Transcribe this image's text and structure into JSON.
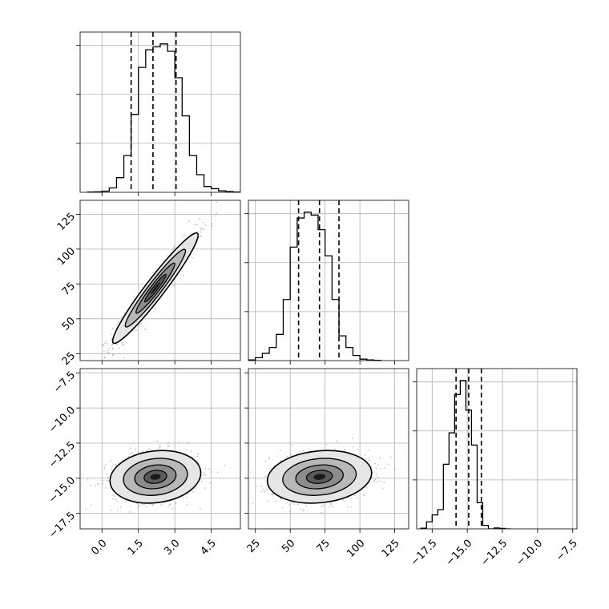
{
  "chart_data": {
    "type": "corner",
    "grid": true,
    "colors": {
      "line": "#000000",
      "grid": "#b0b0b0",
      "points": "#7f7f7f",
      "fill": "#e6e6e6"
    },
    "parameters": [
      {
        "ticks": [
          0.0,
          1.5,
          3.0,
          4.5
        ],
        "tick_labels": [
          "0.0",
          "1.5",
          "3.0",
          "4.5"
        ],
        "range": [
          -0.9,
          5.7
        ],
        "quantiles": [
          1.2,
          2.1,
          3.05
        ],
        "hist_bins": {
          "start": -0.6,
          "width": 0.3
        },
        "hist_counts": [
          2,
          3,
          8,
          30,
          100,
          250,
          530,
          850,
          970,
          990,
          1010,
          960,
          780,
          520,
          250,
          120,
          40,
          25,
          10,
          5,
          2
        ]
      },
      {
        "ticks": [
          25,
          50,
          75,
          100,
          125
        ],
        "tick_labels": [
          "25",
          "50",
          "75",
          "100",
          "125"
        ],
        "range": [
          20,
          135
        ],
        "quantiles": [
          56,
          71,
          85
        ],
        "hist_bins": {
          "start": 20,
          "width": 5
        },
        "hist_counts": [
          5,
          20,
          50,
          90,
          180,
          420,
          780,
          980,
          1020,
          1000,
          900,
          720,
          420,
          170,
          90,
          35,
          10,
          5,
          2
        ]
      },
      {
        "ticks": [
          -17.5,
          -15.0,
          -12.5,
          -10.0,
          -7.5
        ],
        "tick_labels": [
          "−17.5",
          "−15.0",
          "−12.5",
          "−10.0",
          "−7.5"
        ],
        "range": [
          -18.6,
          -7.2
        ],
        "quantiles": [
          -15.8,
          -14.9,
          -14.0
        ],
        "hist_bins": {
          "start": -18.3,
          "width": 0.4
        },
        "hist_counts": [
          4,
          40,
          80,
          110,
          370,
          550,
          770,
          850,
          680,
          480,
          150,
          20,
          0,
          5,
          3,
          0
        ]
      }
    ],
    "pairs": [
      {
        "x": 0,
        "y": 1,
        "center": [
          2.2,
          72
        ],
        "sd": [
          0.8,
          18
        ],
        "corr": 0.96
      },
      {
        "x": 0,
        "y": 2,
        "center": [
          2.2,
          -14.9
        ],
        "sd": [
          0.85,
          0.85
        ],
        "corr": 0.15
      },
      {
        "x": 1,
        "y": 2,
        "center": [
          71,
          -14.9
        ],
        "sd": [
          17,
          0.85
        ],
        "corr": 0.15
      }
    ]
  }
}
